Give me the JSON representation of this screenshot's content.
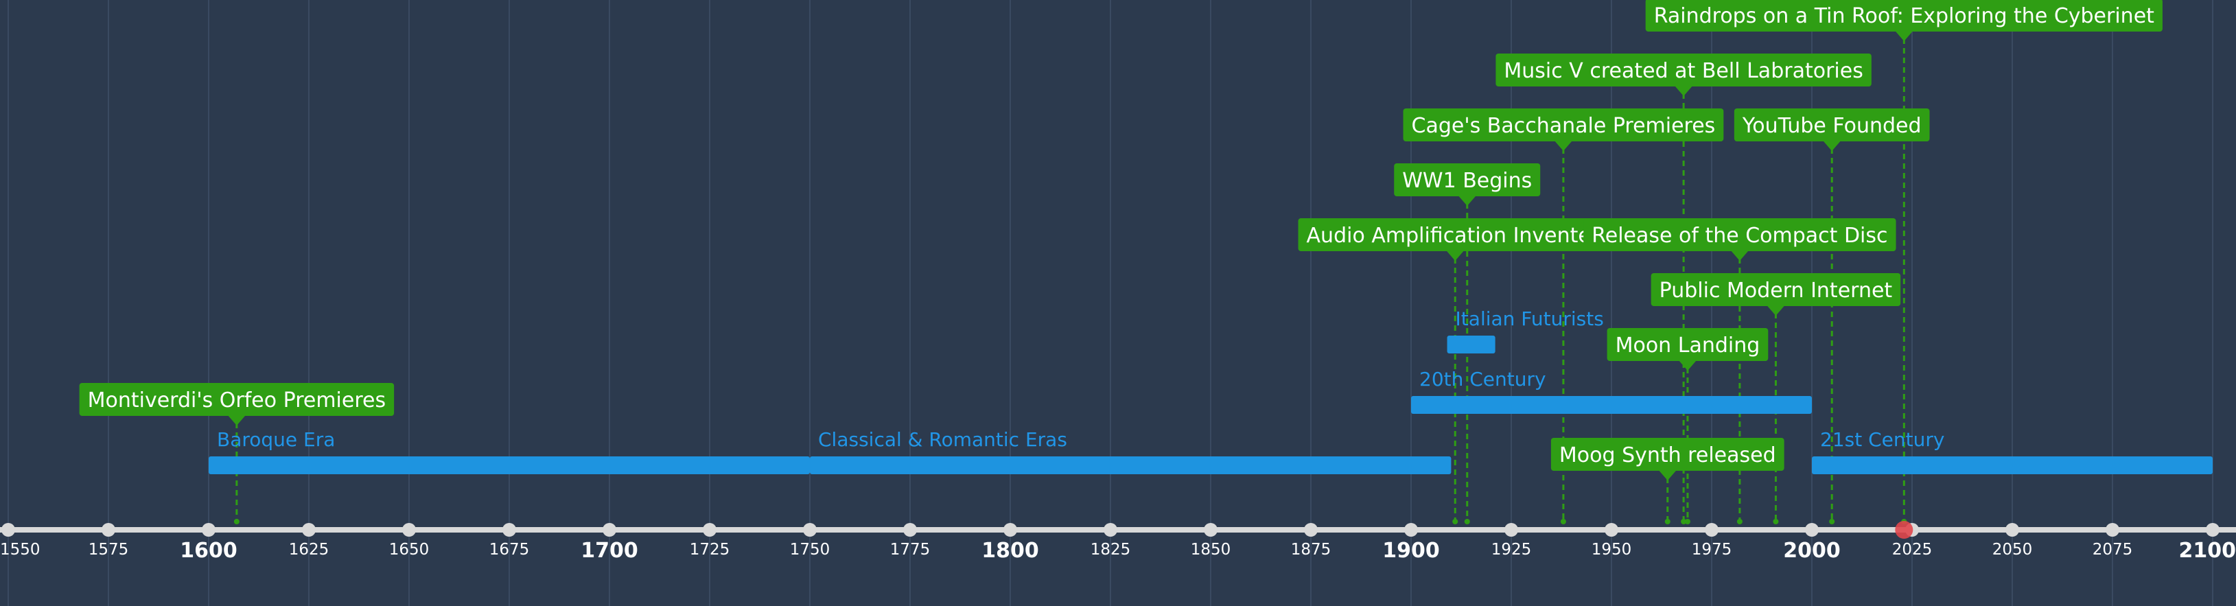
{
  "colors": {
    "background": "#2c3a4e",
    "gridline": "#3a4a61",
    "axis": "#d9d9d9",
    "event": "#2f9e14",
    "event_text": "#ffffff",
    "era": "#1e94e0",
    "era_text": "#2196e8",
    "tick_text": "#ffffff",
    "now_marker": "#e0474c"
  },
  "axis": {
    "min_year": 1550,
    "max_year": 2100,
    "tick_step": 25,
    "labels": [
      "1550",
      "1575",
      "1600",
      "1625",
      "1650",
      "1675",
      "1700",
      "1725",
      "1750",
      "1775",
      "1800",
      "1825",
      "1850",
      "1875",
      "1900",
      "1925",
      "1950",
      "1975",
      "2000",
      "2025",
      "2050",
      "2075",
      "2100"
    ],
    "major_labels": [
      "1600",
      "1700",
      "1800",
      "1900",
      "2000",
      "2100"
    ],
    "current_year": 2023
  },
  "eras": [
    {
      "label": "Baroque Era",
      "start": 1600,
      "end": 1750,
      "level": 0
    },
    {
      "label": "Classical & Romantic Eras",
      "start": 1750,
      "end": 1910,
      "level": 0
    },
    {
      "label": "21st Century",
      "start": 2000,
      "end": 2100,
      "level": 0
    },
    {
      "label": "20th Century",
      "start": 1900,
      "end": 2000,
      "level": 1
    },
    {
      "label": "Italian Futurists",
      "start": 1909,
      "end": 1921,
      "level": 2
    }
  ],
  "events": [
    {
      "label": "Montiverdi's Orfeo Premieres",
      "year": 1607,
      "row": 2
    },
    {
      "label": "Moog Synth released",
      "year": 1964,
      "row": 1
    },
    {
      "label": "Moon Landing",
      "year": 1969,
      "row": 3
    },
    {
      "label": "Public Modern Internet",
      "year": 1991,
      "row": 4
    },
    {
      "label": "Audio Amplification Invented",
      "year": 1911,
      "row": 5
    },
    {
      "label": "Release of the Compact Disc",
      "year": 1982,
      "row": 5
    },
    {
      "label": "WW1 Begins",
      "year": 1914,
      "row": 6
    },
    {
      "label": "Cage's Bacchanale Premieres",
      "year": 1938,
      "row": 7
    },
    {
      "label": "YouTube Founded",
      "year": 2005,
      "row": 7
    },
    {
      "label": "Music V created at Bell Labratories",
      "year": 1968,
      "row": 8
    },
    {
      "label": "Raindrops on a Tin Roof: Exploring the Cyberinet",
      "year": 2023,
      "row": 9
    }
  ]
}
